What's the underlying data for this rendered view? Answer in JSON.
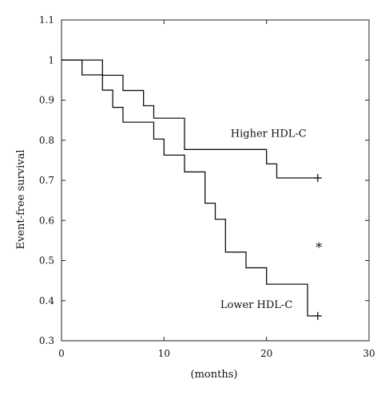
{
  "chart_data": {
    "type": "line",
    "step": true,
    "xlabel": "(months)",
    "ylabel": "Event-free survival",
    "xlim": [
      0,
      30
    ],
    "ylim": [
      0.3,
      1.1
    ],
    "xticks": [
      0,
      10,
      20,
      30
    ],
    "yticks": [
      0.3,
      0.4,
      0.5,
      0.6,
      0.7,
      0.8,
      0.9,
      1,
      1.1
    ],
    "grid": false,
    "series": [
      {
        "name": "Higher HDL-C",
        "x": [
          0,
          4,
          6,
          8,
          9,
          12,
          20,
          21,
          25
        ],
        "y": [
          1.0,
          0.962,
          0.924,
          0.886,
          0.855,
          0.777,
          0.741,
          0.706,
          0.706
        ],
        "censor": [
          25,
          0.706
        ]
      },
      {
        "name": "Lower HDL-C",
        "x": [
          0,
          2,
          4,
          5,
          6,
          9,
          10,
          12,
          14,
          15,
          16,
          18,
          20,
          24,
          25
        ],
        "y": [
          1.0,
          0.963,
          0.925,
          0.882,
          0.845,
          0.803,
          0.763,
          0.721,
          0.643,
          0.603,
          0.521,
          0.482,
          0.441,
          0.362,
          0.362
        ],
        "censor": [
          25,
          0.362
        ]
      }
    ],
    "annotations": [
      {
        "text": "Higher HDL-C",
        "x": 16.5,
        "y": 0.808
      },
      {
        "text": "Lower HDL-C",
        "x": 15.5,
        "y": 0.382
      },
      {
        "text": "*",
        "x": 24.8,
        "y": 0.522
      }
    ]
  }
}
